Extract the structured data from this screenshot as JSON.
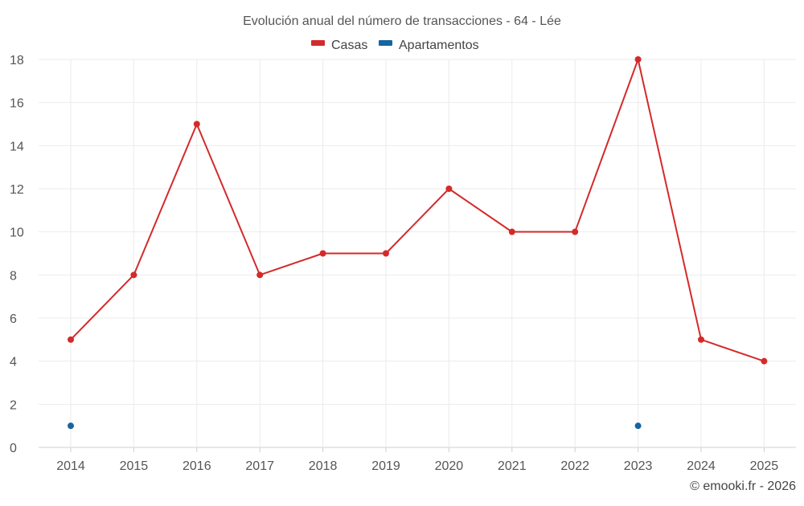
{
  "chart_data": {
    "type": "line",
    "title": "Evolución anual del número de transacciones - 64 - Lée",
    "categories": [
      "2014",
      "2015",
      "2016",
      "2017",
      "2018",
      "2019",
      "2020",
      "2021",
      "2022",
      "2023",
      "2024",
      "2025"
    ],
    "series": [
      {
        "name": "Casas",
        "color": "#d42a2a",
        "values": [
          5,
          8,
          15,
          8,
          9,
          9,
          12,
          10,
          10,
          18,
          5,
          4
        ]
      },
      {
        "name": "Apartamentos",
        "color": "#1565a0",
        "values": [
          1,
          null,
          null,
          null,
          null,
          null,
          null,
          null,
          null,
          1,
          null,
          null
        ]
      }
    ],
    "ylim": [
      0,
      18
    ],
    "yticks": [
      "0",
      "2",
      "4",
      "6",
      "8",
      "10",
      "12",
      "14",
      "16",
      "18"
    ],
    "grid": true,
    "legend_position": "top-center"
  },
  "credit": "© emooki.fr - 2026"
}
